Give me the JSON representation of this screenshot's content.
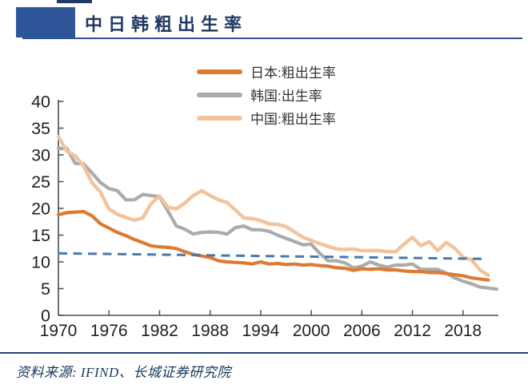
{
  "header": {
    "title": "中日韩粗出生率",
    "accent_color": "#2e5597",
    "title_color": "#1f3864"
  },
  "footer": {
    "source_label": "资料来源: IFIND、长城证券研究院"
  },
  "chart_data": {
    "type": "line",
    "title": "中日韩粗出生率",
    "xlabel": "",
    "ylabel": "",
    "xlim": [
      1970,
      2022.2
    ],
    "ylim": [
      0,
      40
    ],
    "yticks": [
      0,
      5,
      10,
      15,
      20,
      25,
      30,
      35,
      40
    ],
    "xticks": [
      1970,
      1976,
      1982,
      1988,
      1994,
      2000,
      2006,
      2012,
      2018
    ],
    "grid": false,
    "legend_position": "top-center",
    "axis_color": "#4d4d4d",
    "tick_label_color": "#212121",
    "series": [
      {
        "name": "日本:粗出生率",
        "color": "#dd7a33",
        "years_start": 1970,
        "values": [
          18.8,
          19.2,
          19.3,
          19.4,
          18.6,
          17.1,
          16.3,
          15.5,
          14.9,
          14.2,
          13.6,
          13.0,
          12.8,
          12.7,
          12.5,
          11.9,
          11.4,
          11.1,
          10.8,
          10.2,
          10.0,
          9.9,
          9.8,
          9.6,
          10.0,
          9.6,
          9.7,
          9.5,
          9.6,
          9.4,
          9.5,
          9.3,
          9.2,
          8.9,
          8.8,
          8.4,
          8.7,
          8.6,
          8.7,
          8.5,
          8.5,
          8.3,
          8.2,
          8.2,
          8.0,
          8.0,
          7.8,
          7.6,
          7.4,
          7.0,
          6.8,
          6.6
        ]
      },
      {
        "name": "韩国:出生率",
        "color": "#ababab",
        "years_start": 1970,
        "values": [
          31.2,
          31.2,
          28.4,
          28.3,
          26.6,
          24.8,
          23.7,
          23.3,
          21.6,
          21.6,
          22.6,
          22.4,
          22.2,
          19.5,
          16.7,
          16.1,
          15.2,
          15.5,
          15.6,
          15.5,
          15.2,
          16.4,
          16.7,
          16.0,
          16.0,
          15.7,
          15.0,
          14.4,
          13.8,
          13.2,
          13.3,
          11.6,
          10.2,
          10.2,
          9.8,
          8.9,
          9.2,
          10.0,
          9.4,
          9.0,
          9.4,
          9.4,
          9.6,
          8.6,
          8.6,
          8.6,
          7.9,
          7.0,
          6.4,
          5.9,
          5.3,
          5.1,
          4.9
        ]
      },
      {
        "name": "中国:粗出生率",
        "color": "#f2c49e",
        "years_start": 1970,
        "values": [
          33.4,
          30.7,
          29.8,
          27.9,
          24.8,
          23.0,
          19.9,
          18.9,
          18.3,
          17.8,
          18.2,
          20.9,
          22.3,
          20.2,
          19.9,
          21.0,
          22.4,
          23.3,
          22.4,
          21.6,
          21.1,
          19.7,
          18.2,
          18.1,
          17.7,
          17.1,
          17.0,
          16.6,
          15.6,
          14.6,
          14.0,
          13.4,
          12.9,
          12.4,
          12.3,
          12.4,
          12.1,
          12.1,
          12.1,
          11.9,
          11.9,
          13.3,
          14.6,
          13.0,
          13.8,
          12.1,
          13.6,
          12.6,
          10.9,
          10.4,
          8.5,
          7.5
        ]
      }
    ],
    "trendline": {
      "style": "dashed",
      "color": "#4a78ad",
      "points": [
        [
          1970,
          11.6
        ],
        [
          2020.5,
          10.55
        ]
      ]
    }
  }
}
